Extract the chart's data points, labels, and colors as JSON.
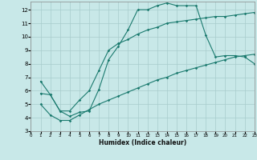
{
  "xlabel": "Humidex (Indice chaleur)",
  "bg_color": "#c8e8e8",
  "line_color": "#1a7a6e",
  "grid_color": "#a8cccc",
  "xlim": [
    0,
    23
  ],
  "ylim": [
    3,
    12.6
  ],
  "xticks": [
    0,
    1,
    2,
    3,
    4,
    5,
    6,
    7,
    8,
    9,
    10,
    11,
    12,
    13,
    14,
    15,
    16,
    17,
    18,
    19,
    20,
    21,
    22,
    23
  ],
  "yticks": [
    3,
    4,
    5,
    6,
    7,
    8,
    9,
    10,
    11,
    12
  ],
  "line1_x": [
    1,
    2,
    3,
    4,
    5,
    6,
    7,
    8,
    9,
    10,
    11,
    12,
    13,
    14,
    15,
    16,
    17,
    18,
    19,
    20,
    21,
    22,
    23
  ],
  "line1_y": [
    6.7,
    5.7,
    4.5,
    4.1,
    4.4,
    4.5,
    6.1,
    8.3,
    9.3,
    10.5,
    12.0,
    12.0,
    12.3,
    12.5,
    12.3,
    12.3,
    12.3,
    10.1,
    8.5,
    8.6,
    8.6,
    8.5,
    8.0
  ],
  "line2_x": [
    1,
    2,
    3,
    4,
    5,
    6,
    7,
    8,
    9,
    10,
    11,
    12,
    13,
    14,
    15,
    16,
    17,
    18,
    19,
    20,
    21,
    22,
    23
  ],
  "line2_y": [
    5.8,
    5.7,
    4.5,
    4.5,
    5.3,
    6.0,
    7.5,
    9.0,
    9.5,
    9.8,
    10.2,
    10.5,
    10.7,
    11.0,
    11.1,
    11.2,
    11.3,
    11.4,
    11.5,
    11.5,
    11.6,
    11.7,
    11.8
  ],
  "line3_x": [
    1,
    2,
    3,
    4,
    5,
    6,
    7,
    8,
    9,
    10,
    11,
    12,
    13,
    14,
    15,
    16,
    17,
    18,
    19,
    20,
    21,
    22,
    23
  ],
  "line3_y": [
    5.0,
    4.2,
    3.8,
    3.8,
    4.2,
    4.6,
    5.0,
    5.3,
    5.6,
    5.9,
    6.2,
    6.5,
    6.8,
    7.0,
    7.3,
    7.5,
    7.7,
    7.9,
    8.1,
    8.3,
    8.5,
    8.6,
    8.7
  ]
}
